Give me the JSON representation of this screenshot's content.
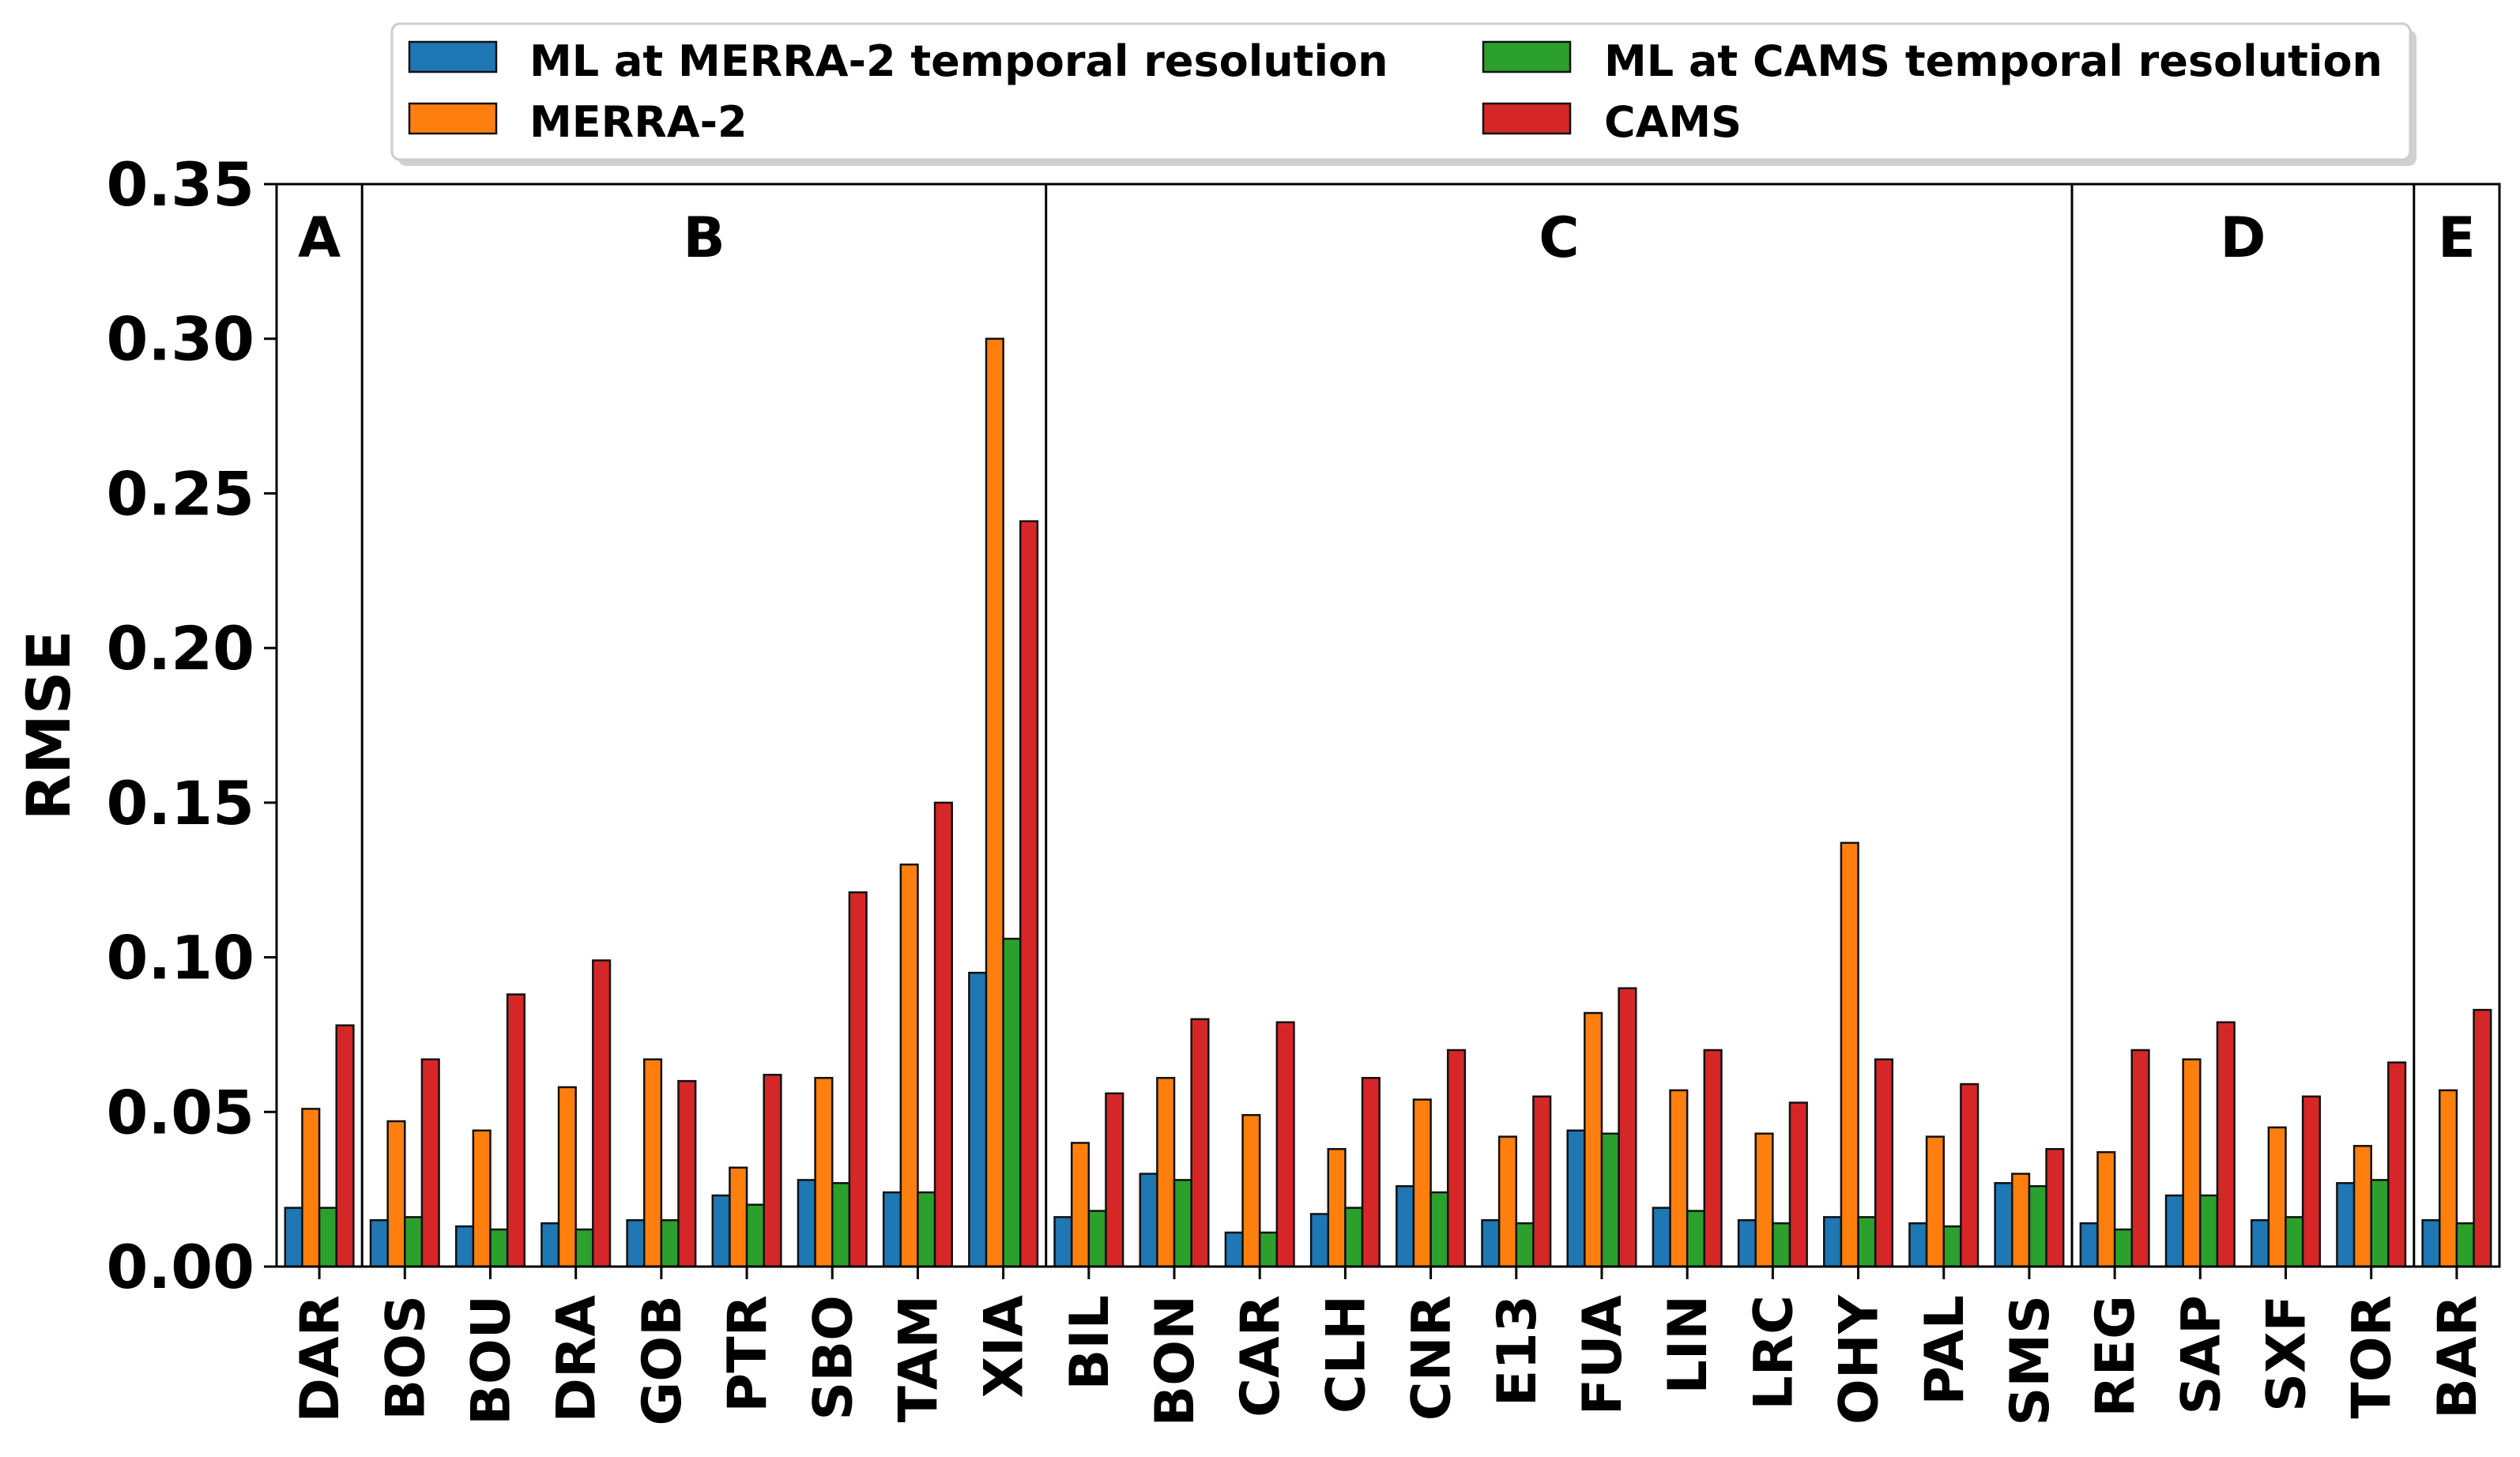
{
  "chart_data": {
    "type": "bar",
    "ylabel": "RMSE",
    "xlabel": "",
    "ylim": [
      0,
      0.35
    ],
    "yticks": [
      0.0,
      0.05,
      0.1,
      0.15,
      0.2,
      0.25,
      0.3,
      0.35
    ],
    "ytick_labels": [
      "0.00",
      "0.05",
      "0.10",
      "0.15",
      "0.20",
      "0.25",
      "0.30",
      "0.35"
    ],
    "legend_position": "top",
    "categories": [
      "DAR",
      "BOS",
      "BOU",
      "DRA",
      "GOB",
      "PTR",
      "SBO",
      "TAM",
      "XIA",
      "BIL",
      "BON",
      "CAR",
      "CLH",
      "CNR",
      "E13",
      "FUA",
      "LIN",
      "LRC",
      "OHY",
      "PAL",
      "SMS",
      "REG",
      "SAP",
      "SXF",
      "TOR",
      "BAR"
    ],
    "groups": [
      {
        "label": "A",
        "start": 0,
        "end": 0
      },
      {
        "label": "B",
        "start": 1,
        "end": 8
      },
      {
        "label": "C",
        "start": 9,
        "end": 20
      },
      {
        "label": "D",
        "start": 21,
        "end": 24
      },
      {
        "label": "E",
        "start": 25,
        "end": 25
      }
    ],
    "series": [
      {
        "name": "ML at MERRA-2 temporal resolution",
        "color": "#1f77b4",
        "values": [
          0.019,
          0.015,
          0.013,
          0.014,
          0.015,
          0.023,
          0.028,
          0.024,
          0.095,
          0.016,
          0.03,
          0.011,
          0.017,
          0.026,
          0.015,
          0.044,
          0.019,
          0.015,
          0.016,
          0.014,
          0.027,
          0.014,
          0.023,
          0.015,
          0.027,
          0.015
        ]
      },
      {
        "name": "MERRA-2",
        "color": "#ff7f0e",
        "values": [
          0.051,
          0.047,
          0.044,
          0.058,
          0.067,
          0.032,
          0.061,
          0.13,
          0.3,
          0.04,
          0.061,
          0.049,
          0.038,
          0.054,
          0.042,
          0.082,
          0.057,
          0.043,
          0.137,
          0.042,
          0.03,
          0.037,
          0.067,
          0.045,
          0.039,
          0.057
        ]
      },
      {
        "name": "ML at CAMS temporal resolution",
        "color": "#2ca02c",
        "values": [
          0.019,
          0.016,
          0.012,
          0.012,
          0.015,
          0.02,
          0.027,
          0.024,
          0.106,
          0.018,
          0.028,
          0.011,
          0.019,
          0.024,
          0.014,
          0.043,
          0.018,
          0.014,
          0.016,
          0.013,
          0.026,
          0.012,
          0.023,
          0.016,
          0.028,
          0.014
        ]
      },
      {
        "name": "CAMS",
        "color": "#d62728",
        "values": [
          0.078,
          0.067,
          0.088,
          0.099,
          0.06,
          0.062,
          0.121,
          0.15,
          0.241,
          0.056,
          0.08,
          0.079,
          0.061,
          0.07,
          0.055,
          0.09,
          0.07,
          0.053,
          0.067,
          0.059,
          0.038,
          0.07,
          0.079,
          0.055,
          0.066,
          0.083
        ]
      }
    ],
    "legend": {
      "entries": [
        {
          "label": "ML at MERRA-2 temporal resolution",
          "color": "#1f77b4"
        },
        {
          "label": "ML at CAMS temporal resolution",
          "color": "#2ca02c"
        },
        {
          "label": "MERRA-2",
          "color": "#ff7f0e"
        },
        {
          "label": "CAMS",
          "color": "#d62728"
        }
      ]
    }
  }
}
